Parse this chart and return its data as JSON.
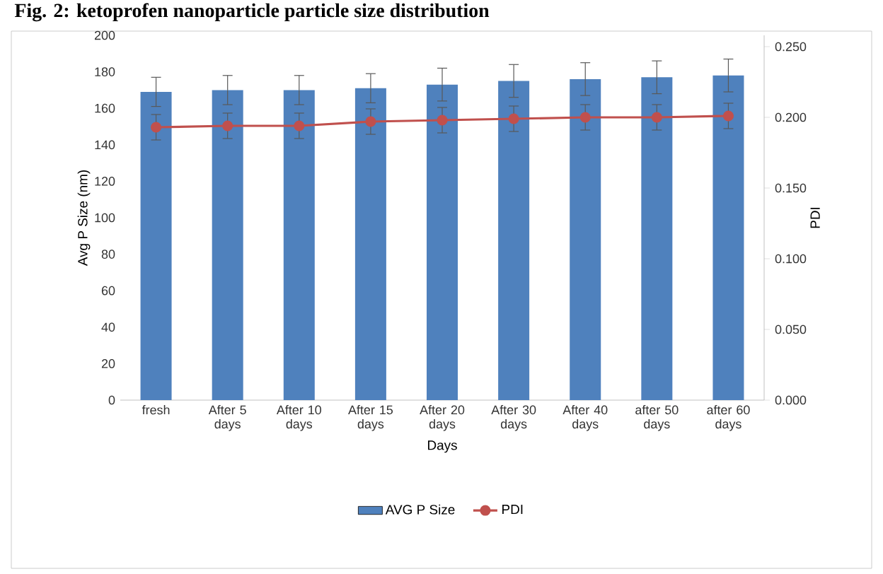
{
  "chart_data": {
    "type": "bar",
    "title": "Fig. 2: ketoprofen nanoparticle particle size distribution",
    "xlabel": "Days",
    "ylabel": "Avg P Size (nm)",
    "y2label": "PDI",
    "categories": [
      "fresh",
      "After 5 days",
      "After 10 days",
      "After 15 days",
      "After 20 days",
      "After 30 days",
      "After 40 days",
      "after 50 days",
      "after 60 days"
    ],
    "ylim": [
      0,
      200
    ],
    "yticks": [
      0,
      20,
      40,
      60,
      80,
      100,
      120,
      140,
      160,
      180,
      200
    ],
    "y2lim": [
      0,
      0.258
    ],
    "y2ticks": [
      {
        "value": 0,
        "label": "0.000"
      },
      {
        "value": 0.05,
        "label": "0.050"
      },
      {
        "value": 0.1,
        "label": "0.100"
      },
      {
        "value": 0.15,
        "label": "0.150"
      },
      {
        "value": 0.2,
        "label": "0.200"
      },
      {
        "value": 0.25,
        "label": "0.250"
      }
    ],
    "series": [
      {
        "name": "AVG P Size",
        "color": "#4f81bd",
        "values": [
          169,
          170,
          170,
          171,
          173,
          175,
          176,
          177,
          178
        ],
        "errors": [
          8,
          8,
          8,
          8,
          9,
          9,
          9,
          9,
          9
        ]
      },
      {
        "name": "PDI",
        "type": "line",
        "axis": "y2",
        "color": "#c0504d",
        "marker": "circle",
        "values": [
          0.193,
          0.194,
          0.194,
          0.197,
          0.198,
          0.199,
          0.2,
          0.2,
          0.201
        ],
        "errors": [
          0.009,
          0.009,
          0.009,
          0.009,
          0.009,
          0.009,
          0.009,
          0.009,
          0.009
        ]
      }
    ],
    "legend": "bottom",
    "grid": false
  }
}
